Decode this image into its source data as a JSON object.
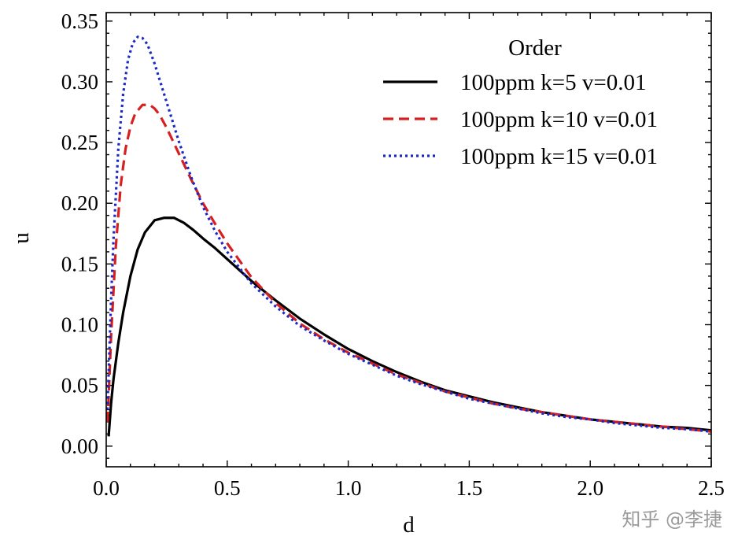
{
  "chart_data": {
    "type": "line",
    "title": "",
    "xlabel": "d",
    "ylabel": "u",
    "xlim": [
      0.0,
      2.5
    ],
    "ylim": [
      -0.017,
      0.357
    ],
    "xticks": [
      0.0,
      0.5,
      1.0,
      1.5,
      2.0,
      2.5
    ],
    "xtick_labels": [
      "0.0",
      "0.5",
      "1.0",
      "1.5",
      "2.0",
      "2.5"
    ],
    "yticks": [
      0.0,
      0.05,
      0.1,
      0.15,
      0.2,
      0.25,
      0.3,
      0.35
    ],
    "ytick_labels": [
      "0.00",
      "0.05",
      "0.10",
      "0.15",
      "0.20",
      "0.25",
      "0.30",
      "0.35"
    ],
    "x_minor_step": 0.1,
    "y_minor_step": 0.01,
    "grid": false,
    "legend": {
      "title": "Order",
      "placement": "top-right",
      "frame": false
    },
    "series": [
      {
        "name": "100ppm k=5 v=0.01",
        "color": "#000000",
        "style": "solid",
        "x": [
          0.01,
          0.02,
          0.03,
          0.05,
          0.07,
          0.1,
          0.13,
          0.16,
          0.2,
          0.24,
          0.28,
          0.32,
          0.36,
          0.4,
          0.45,
          0.5,
          0.6,
          0.7,
          0.8,
          0.9,
          1.0,
          1.1,
          1.2,
          1.3,
          1.4,
          1.5,
          1.6,
          1.7,
          1.8,
          1.9,
          2.0,
          2.1,
          2.2,
          2.3,
          2.4,
          2.5
        ],
        "y": [
          0.008,
          0.035,
          0.055,
          0.085,
          0.11,
          0.14,
          0.162,
          0.176,
          0.186,
          0.188,
          0.188,
          0.184,
          0.178,
          0.171,
          0.163,
          0.154,
          0.136,
          0.12,
          0.105,
          0.092,
          0.08,
          0.07,
          0.061,
          0.053,
          0.046,
          0.041,
          0.036,
          0.032,
          0.028,
          0.025,
          0.022,
          0.02,
          0.018,
          0.016,
          0.015,
          0.013
        ]
      },
      {
        "name": "100ppm k=10 v=0.01",
        "color": "#d62020",
        "style": "dashed",
        "x": [
          0.005,
          0.01,
          0.02,
          0.04,
          0.06,
          0.08,
          0.1,
          0.12,
          0.15,
          0.18,
          0.2,
          0.22,
          0.25,
          0.3,
          0.35,
          0.4,
          0.45,
          0.5,
          0.6,
          0.7,
          0.8,
          0.9,
          1.0,
          1.1,
          1.2,
          1.3,
          1.4,
          1.5,
          1.6,
          1.7,
          1.8,
          1.9,
          2.0,
          2.1,
          2.2,
          2.3,
          2.4,
          2.5
        ],
        "y": [
          0.02,
          0.04,
          0.09,
          0.165,
          0.215,
          0.245,
          0.263,
          0.274,
          0.281,
          0.281,
          0.278,
          0.273,
          0.262,
          0.241,
          0.22,
          0.2,
          0.183,
          0.167,
          0.139,
          0.118,
          0.101,
          0.088,
          0.077,
          0.068,
          0.059,
          0.052,
          0.045,
          0.04,
          0.035,
          0.031,
          0.028,
          0.025,
          0.022,
          0.02,
          0.018,
          0.016,
          0.014,
          0.012
        ]
      },
      {
        "name": "100ppm k=15 v=0.01",
        "color": "#1a28c8",
        "style": "dotted",
        "x": [
          0.005,
          0.01,
          0.02,
          0.03,
          0.05,
          0.07,
          0.09,
          0.11,
          0.13,
          0.15,
          0.17,
          0.2,
          0.25,
          0.3,
          0.35,
          0.4,
          0.45,
          0.5,
          0.6,
          0.7,
          0.8,
          0.9,
          1.0,
          1.1,
          1.2,
          1.3,
          1.4,
          1.5,
          1.6,
          1.7,
          1.8,
          1.9,
          2.0,
          2.1,
          2.2,
          2.3,
          2.4,
          2.5
        ],
        "y": [
          0.03,
          0.06,
          0.12,
          0.17,
          0.245,
          0.29,
          0.318,
          0.332,
          0.337,
          0.336,
          0.331,
          0.315,
          0.283,
          0.251,
          0.222,
          0.197,
          0.177,
          0.16,
          0.134,
          0.115,
          0.099,
          0.087,
          0.076,
          0.067,
          0.058,
          0.051,
          0.045,
          0.039,
          0.035,
          0.031,
          0.027,
          0.024,
          0.022,
          0.019,
          0.017,
          0.015,
          0.014,
          0.012
        ]
      }
    ]
  },
  "watermark": "知乎 @李捷"
}
